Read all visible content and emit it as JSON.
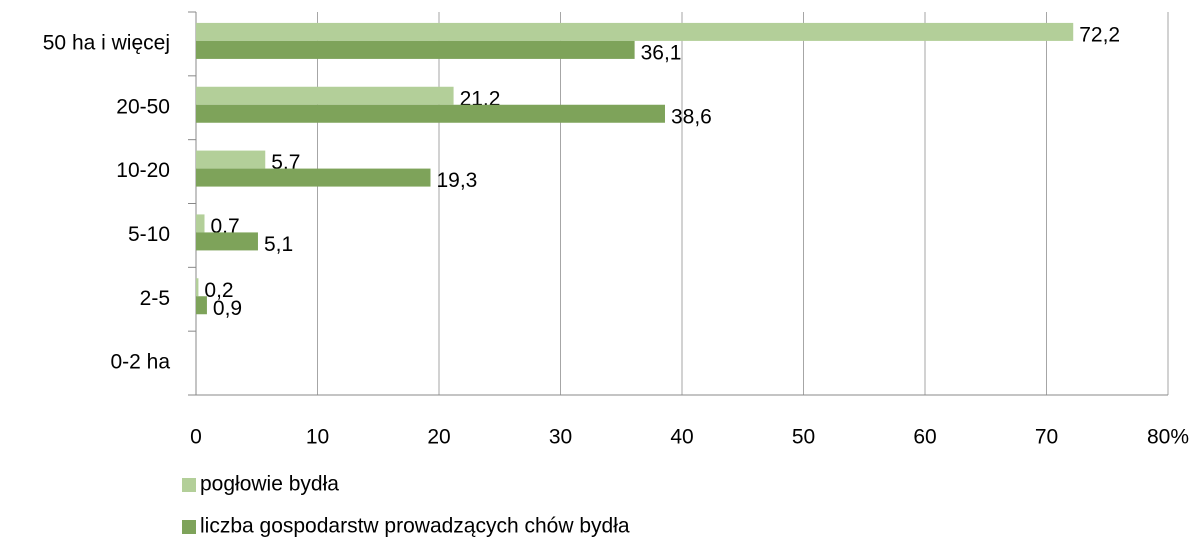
{
  "chart_data": {
    "type": "hbar",
    "categories": [
      "50 ha i więcej",
      "20-50",
      "10-20",
      "5-10",
      "2-5",
      "0-2 ha"
    ],
    "series": [
      {
        "name": "pogłowie bydła",
        "color": "#b3cf99",
        "values": [
          72.2,
          21.2,
          5.7,
          0.7,
          0.2,
          null
        ],
        "value_labels": [
          "72,2",
          "21,2",
          "5,7",
          "0,7",
          "0,2",
          null
        ]
      },
      {
        "name": "liczba gospodarstw prowadzących chów bydła",
        "color": "#7ea35a",
        "values": [
          36.1,
          38.6,
          19.3,
          5.1,
          0.9,
          null
        ],
        "value_labels": [
          "36,1",
          "38,6",
          "19,3",
          "5,1",
          "0,9",
          null
        ]
      }
    ],
    "xlim": [
      0,
      80
    ],
    "xticks": [
      0,
      10,
      20,
      30,
      40,
      50,
      60,
      70,
      {
        "value": 80,
        "label": "80%"
      }
    ],
    "grid": true,
    "legend": "bottom"
  }
}
